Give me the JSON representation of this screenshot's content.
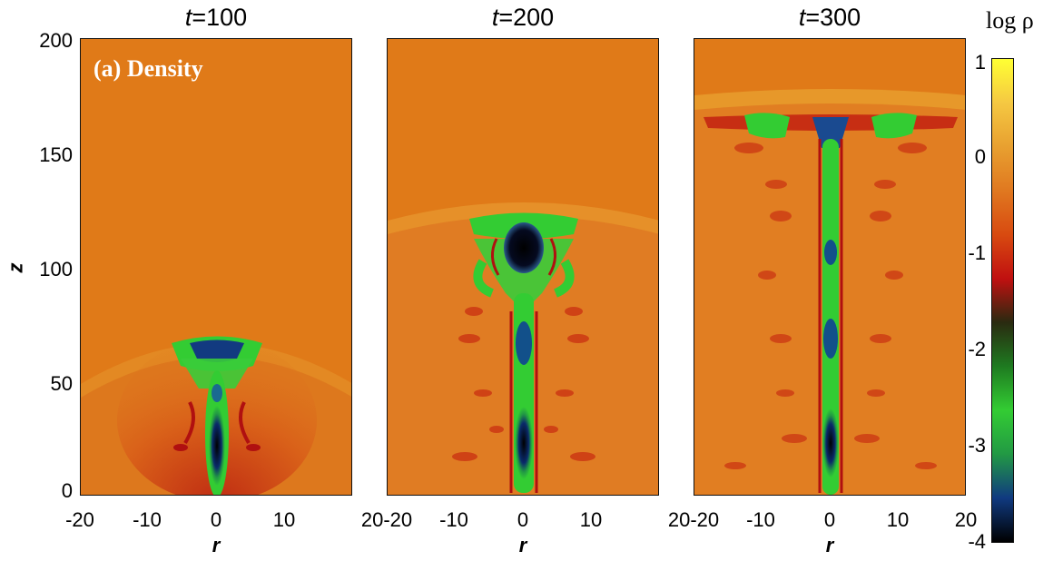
{
  "panels": [
    {
      "title_var": "t",
      "title_val": "=100",
      "label": "(a) Density"
    },
    {
      "title_var": "t",
      "title_val": "=200"
    },
    {
      "title_var": "t",
      "title_val": "=300"
    }
  ],
  "axes": {
    "ylabel": "z",
    "xlabel": "r",
    "yticks": [
      "200",
      "150",
      "100",
      "50",
      "0"
    ],
    "xticks_first": [
      "-20",
      "-10",
      "0",
      "10"
    ],
    "xticks_mid": [
      "20-20",
      "-10",
      "0",
      "10"
    ],
    "xticks_last": [
      "20-20",
      "-10",
      "0",
      "10",
      "20"
    ]
  },
  "colorbar": {
    "title": "log ρ",
    "ticks": [
      "1",
      "0",
      "-1",
      "-2",
      "-3",
      "-4"
    ],
    "colors": [
      "#ffff33",
      "#f5c842",
      "#e8a030",
      "#e07820",
      "#d84a10",
      "#c01010",
      "#2a2a10",
      "#1e7a20",
      "#33cc33",
      "#229944",
      "#103a80",
      "#000000"
    ]
  }
}
